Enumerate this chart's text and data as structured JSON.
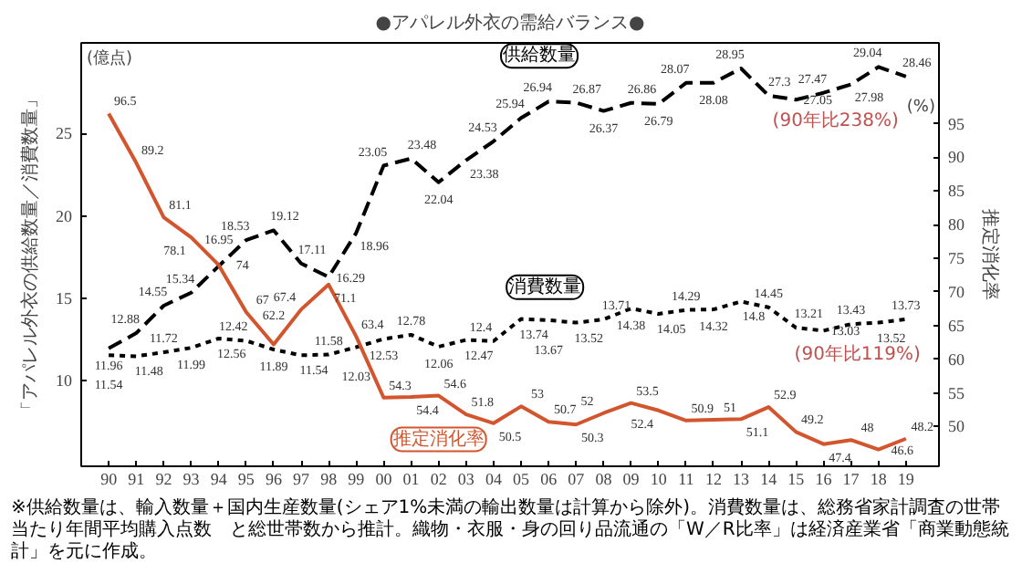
{
  "chart_data": {
    "type": "line",
    "title": "●アパレル外衣の需給バランス●",
    "ylabel": "「アパレル外衣の供給数量／消費数量」",
    "y2label": "推定消化率",
    "categories": [
      "90",
      "91",
      "92",
      "93",
      "94",
      "95",
      "96",
      "97",
      "98",
      "99",
      "00",
      "01",
      "02",
      "03",
      "04",
      "05",
      "06",
      "07",
      "08",
      "09",
      "10",
      "11",
      "12",
      "13",
      "14",
      "15",
      "16",
      "17",
      "18",
      "19"
    ],
    "series": [
      {
        "name": "供給数量",
        "color": "#000000",
        "line_style": "dashed",
        "values": [
          11.96,
          12.88,
          14.55,
          15.34,
          16.95,
          18.53,
          19.12,
          17.11,
          16.29,
          18.96,
          23.05,
          23.48,
          22.04,
          23.38,
          24.53,
          25.94,
          26.94,
          26.87,
          26.37,
          26.86,
          26.79,
          28.07,
          28.08,
          28.95,
          27.3,
          27.05,
          27.47,
          27.98,
          29.04,
          28.46
        ]
      },
      {
        "name": "消費数量",
        "color": "#000000",
        "line_style": "dotted",
        "values": [
          11.54,
          11.48,
          11.72,
          11.99,
          12.56,
          12.42,
          11.89,
          11.54,
          11.58,
          12.03,
          12.53,
          12.78,
          12.06,
          12.47,
          12.4,
          13.74,
          13.67,
          13.52,
          13.71,
          14.38,
          14.05,
          14.29,
          14.32,
          14.8,
          14.45,
          13.21,
          13.03,
          13.43,
          13.52,
          13.73
        ]
      },
      {
        "name": "推定消化率",
        "color": "#d2552e",
        "line_style": "solid",
        "axis": "y2",
        "values": [
          96.5,
          89.2,
          81.1,
          78.1,
          74.0,
          67.0,
          62.2,
          67.4,
          71.1,
          63.4,
          54.3,
          54.4,
          54.6,
          51.8,
          50.5,
          53.0,
          50.7,
          50.3,
          52.0,
          53.5,
          52.4,
          50.9,
          51.0,
          51.1,
          52.9,
          49.2,
          47.4,
          48.0,
          46.6,
          48.2
        ]
      }
    ],
    "ylim": [
      4.8,
      30.5
    ],
    "yticks": [
      10,
      15,
      20,
      25
    ],
    "y2lim": [
      44.1,
      107
    ],
    "y2ticks": [
      50,
      55,
      60,
      65,
      70,
      75,
      80,
      85,
      90,
      95
    ],
    "data_labels": true,
    "grid": false,
    "legend": false,
    "annotations": [
      "(億点)",
      "(%)",
      "※供給数量は、輸入数量＋国内生産数量(シェア1%未満の輸出数量は計算から除外)。消費数量は、総務省家計調査の世帯当たり年間平均購入点数　と総世帯数から推計。織物・衣服・身の回り品流通の「W／R比率」は経済産業省「商業動態統計」を元に作成。",
      {
        "text": "(90年比238%)",
        "x": "19",
        "y": 28.46
      },
      {
        "text": "(90年比119%)",
        "x": "19",
        "y": 13.73
      }
    ]
  }
}
